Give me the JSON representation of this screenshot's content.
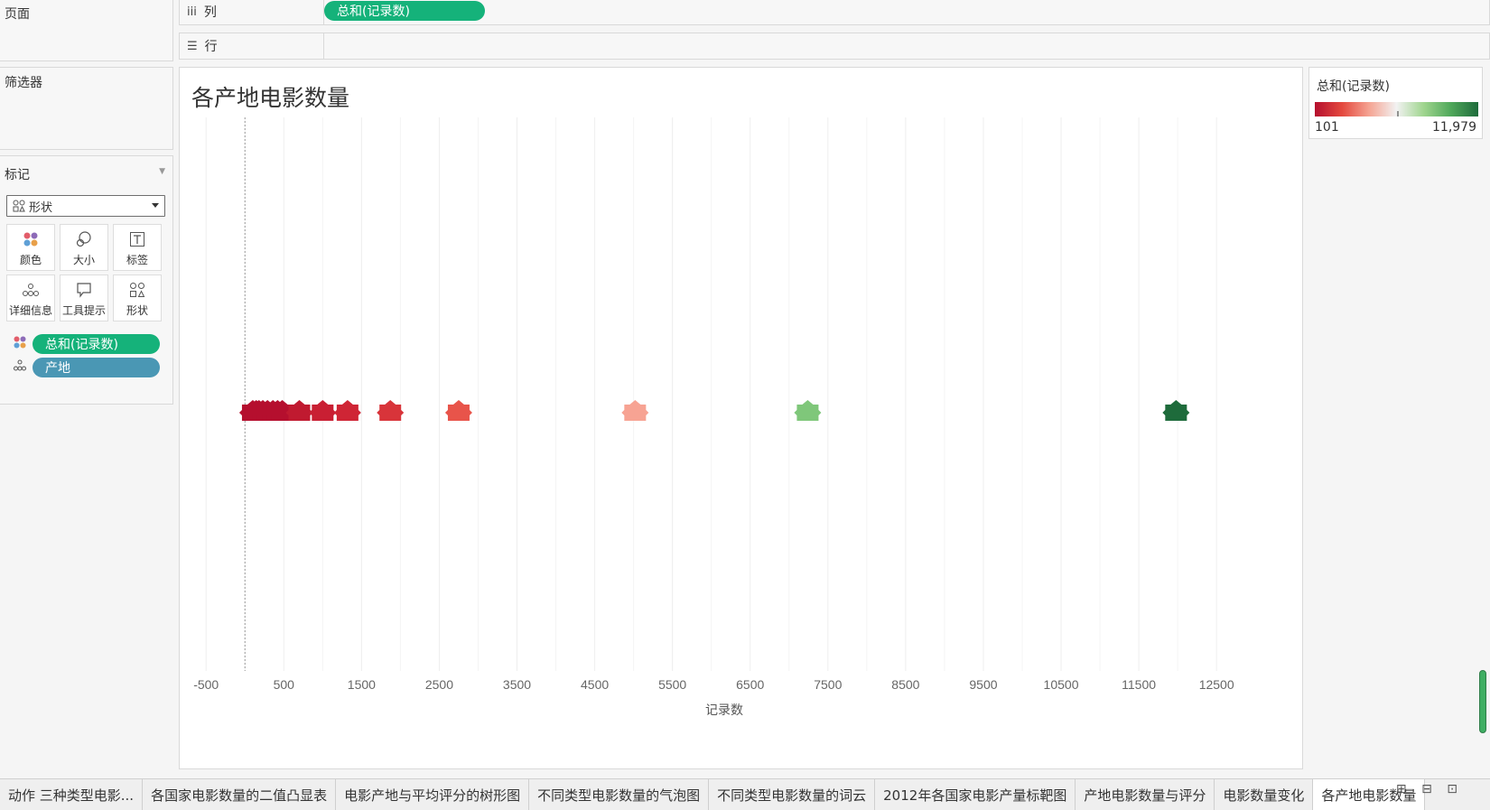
{
  "panels": {
    "pages": "页面",
    "filters": "筛选器",
    "marks": "标记",
    "mark_type": "形状",
    "mark_buttons": [
      "颜色",
      "大小",
      "标签",
      "详细信息",
      "工具提示",
      "形状"
    ],
    "pills": [
      "总和(记录数)",
      "产地"
    ]
  },
  "shelves": {
    "columns_label": "列",
    "columns_pill": "总和(记录数)",
    "rows_label": "行"
  },
  "sheet_title": "各产地电影数量",
  "legend": {
    "title": "总和(记录数)",
    "min": "101",
    "max": "11,979",
    "colors": [
      "#b50f2e",
      "#e4493e",
      "#f5a493",
      "#f2f2f2",
      "#9fd58e",
      "#4fa85a",
      "#1e6b3b"
    ]
  },
  "chart_data": {
    "type": "scatter",
    "title": "各产地电影数量",
    "xlabel": "记录数",
    "ylabel": "",
    "xlim": [
      -700,
      12800
    ],
    "xticks": [
      "-500",
      "500",
      "1500",
      "2500",
      "3500",
      "4500",
      "5500",
      "6500",
      "7500",
      "8500",
      "9500",
      "10500",
      "11500",
      "12500"
    ],
    "grid": "vertical",
    "legend": "top-right",
    "points": [
      {
        "x": 101,
        "color": "#b50f2e"
      },
      {
        "x": 145,
        "color": "#b50f2e"
      },
      {
        "x": 180,
        "color": "#b50f2e"
      },
      {
        "x": 230,
        "color": "#b50f2e"
      },
      {
        "x": 290,
        "color": "#b50f2e"
      },
      {
        "x": 360,
        "color": "#b50f2e"
      },
      {
        "x": 420,
        "color": "#b50f2e"
      },
      {
        "x": 480,
        "color": "#b50f2e"
      },
      {
        "x": 700,
        "color": "#c01a30"
      },
      {
        "x": 1000,
        "color": "#c91f33"
      },
      {
        "x": 1320,
        "color": "#cf2535"
      },
      {
        "x": 1870,
        "color": "#d8343a"
      },
      {
        "x": 2750,
        "color": "#e8544a"
      },
      {
        "x": 5020,
        "color": "#f7a393"
      },
      {
        "x": 7240,
        "color": "#7fc77a"
      },
      {
        "x": 11979,
        "color": "#1e6b3b"
      }
    ]
  },
  "tabs": [
    "动作 三种类型电影...",
    "各国家电影数量的二值凸显表",
    "电影产地与平均评分的树形图",
    "不同类型电影数量的气泡图",
    "不同类型电影数量的词云",
    "2012年各国家电影产量标靶图",
    "产地电影数量与评分",
    "电影数量变化",
    "各产地电影数量"
  ],
  "active_tab": 8,
  "tab_tools": "⊞ ⊟ ⊡"
}
